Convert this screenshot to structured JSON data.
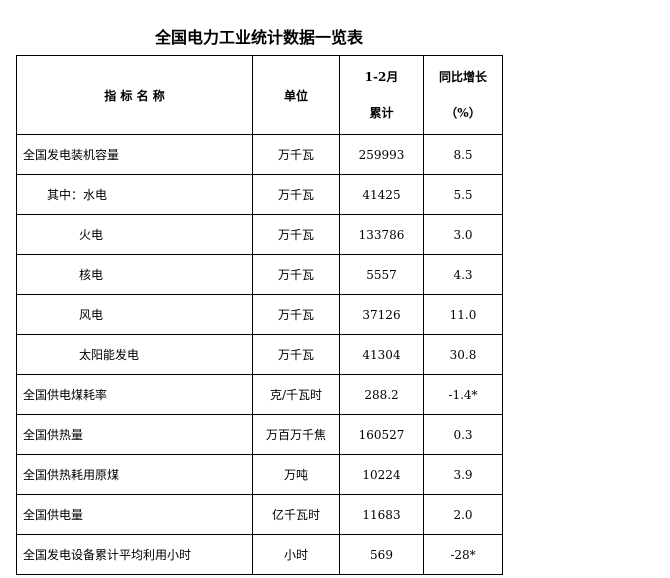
{
  "title": "全国电力工业统计数据一览表",
  "headers": {
    "name": "指 标 名 称",
    "unit": "单位",
    "period_line1": "1-2月",
    "period_line2": "累计",
    "growth_line1": "同比增长",
    "growth_line2": "（%）"
  },
  "rows": [
    {
      "name": "全国发电装机容量",
      "unit": "万千瓦",
      "value": "259993",
      "growth": "8.5",
      "indent": 0
    },
    {
      "name": "其中：水电",
      "unit": "万千瓦",
      "value": "41425",
      "growth": "5.5",
      "indent": 1
    },
    {
      "name": "火电",
      "unit": "万千瓦",
      "value": "133786",
      "growth": "3.0",
      "indent": 2
    },
    {
      "name": "核电",
      "unit": "万千瓦",
      "value": "5557",
      "growth": "4.3",
      "indent": 2
    },
    {
      "name": "风电",
      "unit": "万千瓦",
      "value": "37126",
      "growth": "11.0",
      "indent": 2
    },
    {
      "name": "太阳能发电",
      "unit": "万千瓦",
      "value": "41304",
      "growth": "30.8",
      "indent": 2
    },
    {
      "name": "全国供电煤耗率",
      "unit": "克/千瓦时",
      "value": "288.2",
      "growth": "-1.4*",
      "indent": 0
    },
    {
      "name": "全国供热量",
      "unit": "万百万千焦",
      "value": "160527",
      "growth": "0.3",
      "indent": 0
    },
    {
      "name": "全国供热耗用原煤",
      "unit": "万吨",
      "value": "10224",
      "growth": "3.9",
      "indent": 0
    },
    {
      "name": "全国供电量",
      "unit": "亿千瓦时",
      "value": "11683",
      "growth": "2.0",
      "indent": 0
    },
    {
      "name": "全国发电设备累计平均利用小时",
      "unit": "小时",
      "value": "569",
      "growth": "-28*",
      "indent": 0
    }
  ]
}
